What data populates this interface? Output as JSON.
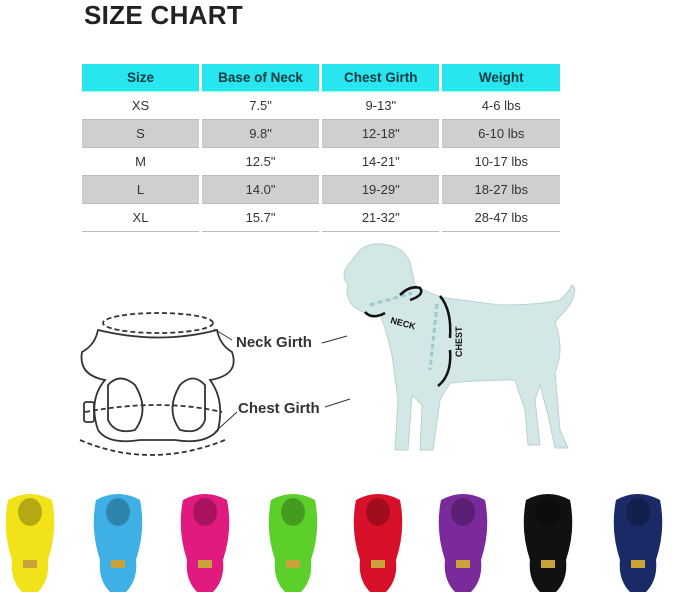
{
  "title": "SIZE CHART",
  "table": {
    "headers": [
      "Size",
      "Base of Neck",
      "Chest Girth",
      "Weight"
    ],
    "rows": [
      [
        "XS",
        "7.5\"",
        "9-13\"",
        "4-6 lbs"
      ],
      [
        "S",
        "9.8\"",
        "12-18\"",
        "6-10 lbs"
      ],
      [
        "M",
        "12.5\"",
        "14-21\"",
        "10-17 lbs"
      ],
      [
        "L",
        "14.0\"",
        "19-29\"",
        "18-27 lbs"
      ],
      [
        "XL",
        "15.7\"",
        "21-32\"",
        "28-47 lbs"
      ]
    ],
    "header_color": "#27e6f0"
  },
  "diagram": {
    "neck_girth_label": "Neck Girth",
    "chest_girth_label": "Chest Girth",
    "dog_neck_label": "NECK",
    "dog_chest_label": "CHEST"
  },
  "harness_colors": [
    "#f2e21a",
    "#3fb0e6",
    "#e01a7e",
    "#5ccf2a",
    "#d8102a",
    "#7a2a9a",
    "#111111",
    "#1a2a66"
  ]
}
